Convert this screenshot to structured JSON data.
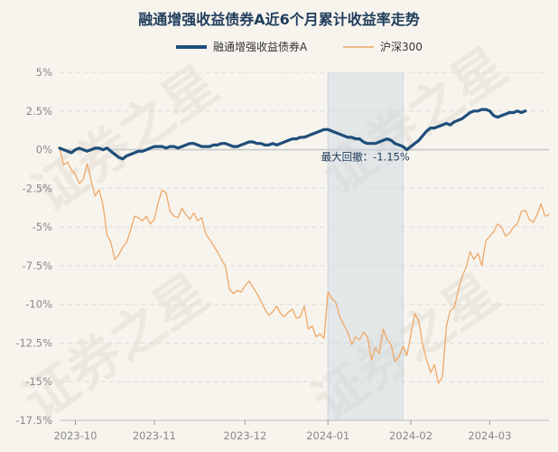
{
  "chart_data": {
    "type": "line",
    "title": "融通增强收益债券A近6个月累计收益率走势",
    "watermark": "证券之星",
    "legend": [
      "融通增强收益债券A",
      "沪深300"
    ],
    "y_ticks": [
      "5%",
      "2.5%",
      "0%",
      "-2.5%",
      "-5%",
      "-7.5%",
      "-10%",
      "-12.5%",
      "-15%",
      "-17.5%"
    ],
    "ylim": [
      -17.5,
      5
    ],
    "x_ticks": [
      "2023-10",
      "2023-11",
      "2023-12",
      "2024-01",
      "2024-02",
      "2024-03"
    ],
    "x_tick_positions": [
      4,
      24,
      47,
      68,
      89,
      109
    ],
    "x_range": [
      0,
      124
    ],
    "max_drawdown": {
      "label": "最大回撤：-1.15%",
      "start": 68,
      "end": 87
    },
    "series": [
      {
        "name": "融通增强收益债券A",
        "color": "#1f4e7a",
        "values": [
          0.1,
          0.0,
          -0.1,
          -0.2,
          0.0,
          0.1,
          0.0,
          -0.1,
          0.0,
          0.1,
          0.1,
          0.0,
          0.1,
          -0.1,
          -0.3,
          -0.5,
          -0.6,
          -0.4,
          -0.3,
          -0.2,
          -0.1,
          -0.1,
          0.0,
          0.1,
          0.2,
          0.2,
          0.2,
          0.1,
          0.2,
          0.2,
          0.1,
          0.2,
          0.3,
          0.4,
          0.4,
          0.3,
          0.2,
          0.2,
          0.2,
          0.3,
          0.3,
          0.4,
          0.4,
          0.3,
          0.2,
          0.2,
          0.3,
          0.4,
          0.5,
          0.5,
          0.4,
          0.4,
          0.3,
          0.3,
          0.4,
          0.3,
          0.4,
          0.5,
          0.6,
          0.7,
          0.7,
          0.8,
          0.8,
          0.9,
          1.0,
          1.1,
          1.2,
          1.3,
          1.3,
          1.2,
          1.1,
          1.0,
          0.9,
          0.8,
          0.8,
          0.7,
          0.7,
          0.5,
          0.4,
          0.4,
          0.4,
          0.5,
          0.6,
          0.7,
          0.6,
          0.4,
          0.3,
          0.2,
          0.0,
          0.2,
          0.4,
          0.6,
          0.9,
          1.2,
          1.4,
          1.4,
          1.5,
          1.6,
          1.7,
          1.6,
          1.8,
          1.9,
          2.0,
          2.2,
          2.4,
          2.5,
          2.5,
          2.6,
          2.6,
          2.5,
          2.2,
          2.1,
          2.2,
          2.3,
          2.4,
          2.4,
          2.5,
          2.4,
          2.5
        ]
      },
      {
        "name": "沪深300",
        "color": "#f0a867",
        "values": [
          0.1,
          -1.0,
          -0.8,
          -1.3,
          -1.6,
          -2.2,
          -1.9,
          -0.9,
          -2.0,
          -3.0,
          -2.6,
          -3.6,
          -5.5,
          -6.0,
          -7.1,
          -6.8,
          -6.3,
          -6.0,
          -5.2,
          -4.3,
          -4.4,
          -4.6,
          -4.3,
          -4.8,
          -4.5,
          -3.4,
          -2.6,
          -2.8,
          -4.0,
          -4.3,
          -4.4,
          -3.8,
          -4.2,
          -4.5,
          -4.1,
          -4.6,
          -4.4,
          -5.4,
          -5.8,
          -6.2,
          -6.6,
          -7.1,
          -7.5,
          -9.0,
          -9.3,
          -9.1,
          -9.2,
          -8.8,
          -8.5,
          -8.9,
          -9.3,
          -9.8,
          -10.3,
          -10.7,
          -10.5,
          -10.1,
          -10.6,
          -10.8,
          -10.5,
          -10.3,
          -10.9,
          -10.8,
          -10.1,
          -11.6,
          -11.4,
          -12.1,
          -11.9,
          -12.2,
          -9.2,
          -9.6,
          -9.9,
          -10.8,
          -11.3,
          -11.8,
          -12.6,
          -12.1,
          -12.3,
          -11.8,
          -12.1,
          -13.6,
          -12.8,
          -13.2,
          -11.6,
          -12.3,
          -12.6,
          -13.7,
          -13.4,
          -12.7,
          -13.3,
          -12.0,
          -10.6,
          -11.1,
          -12.6,
          -13.6,
          -14.4,
          -13.9,
          -15.1,
          -14.7,
          -11.4,
          -10.4,
          -10.2,
          -9.1,
          -8.2,
          -7.6,
          -6.6,
          -7.1,
          -6.7,
          -7.5,
          -5.9,
          -5.6,
          -5.3,
          -4.8,
          -5.0,
          -5.6,
          -5.4,
          -5.0,
          -4.8,
          -4.0,
          -3.9,
          -4.5,
          -4.7,
          -4.2,
          -3.5,
          -4.3,
          -4.2
        ]
      }
    ]
  }
}
